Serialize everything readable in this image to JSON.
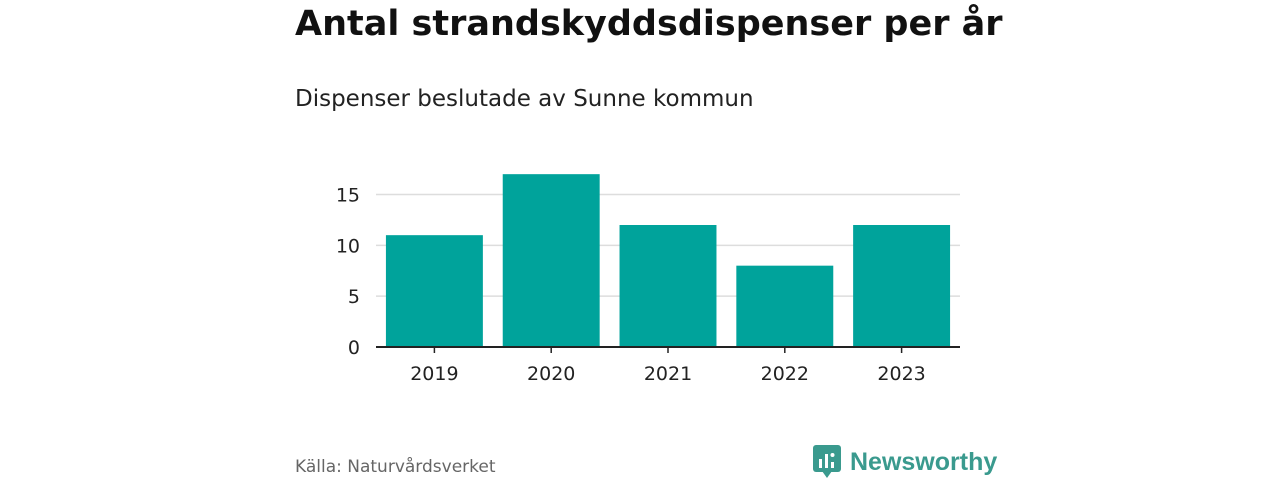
{
  "title": "Antal strandskyddsdispenser per år",
  "subtitle": "Dispenser beslutade av Sunne kommun",
  "source": "Källa: Naturvårdsverket",
  "brand": {
    "name": "Newsworthy",
    "icon": "newsworthy-logo-icon",
    "color": "#3a9a8e"
  },
  "chart_data": {
    "type": "bar",
    "categories": [
      "2019",
      "2020",
      "2021",
      "2022",
      "2023"
    ],
    "values": [
      11,
      17,
      12,
      8,
      12
    ],
    "ylim": [
      0,
      18
    ],
    "yticks": [
      0,
      5,
      10,
      15
    ],
    "xlabel": "",
    "ylabel": "",
    "grid": true,
    "bar_color": "#00a39b"
  }
}
